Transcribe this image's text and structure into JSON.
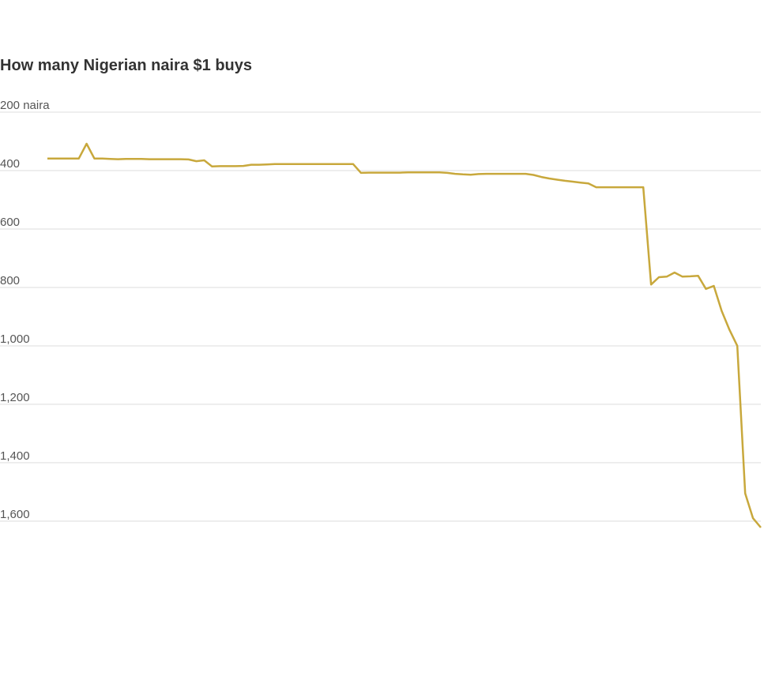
{
  "chart_data": {
    "type": "line",
    "title": "How many Nigerian naira $1 buys",
    "series": [
      {
        "color": "#c8a83c",
        "values": [
          359,
          359,
          359,
          359,
          359,
          308,
          359,
          359,
          360,
          361,
          360,
          360,
          360,
          361,
          361,
          361,
          361,
          361,
          362,
          368,
          365,
          386,
          385,
          385,
          385,
          384,
          380,
          380,
          379,
          378,
          378,
          378,
          378,
          378,
          378,
          378,
          378,
          378,
          378,
          378,
          408,
          407,
          407,
          407,
          407,
          407,
          406,
          406,
          406,
          406,
          406,
          408,
          411,
          413,
          414,
          412,
          411,
          411,
          411,
          411,
          411,
          411,
          415,
          422,
          427,
          431,
          435,
          438,
          441,
          444,
          457,
          457,
          457,
          457,
          457,
          457,
          457,
          790,
          765,
          763,
          749,
          763,
          762,
          760,
          805,
          795,
          880,
          945,
          1000,
          1505,
          1590,
          1622
        ]
      }
    ],
    "ylim": [
      200,
      1630
    ],
    "inverted": true,
    "yticks": [
      {
        "value": 200,
        "label": "200 naira"
      },
      400,
      600,
      800,
      {
        "value": 1000,
        "label": "1,000"
      },
      {
        "value": 1200,
        "label": "1,200"
      },
      {
        "value": 1400,
        "label": "1,400"
      },
      {
        "value": 1600,
        "label": "1,600"
      }
    ],
    "grid": true
  }
}
